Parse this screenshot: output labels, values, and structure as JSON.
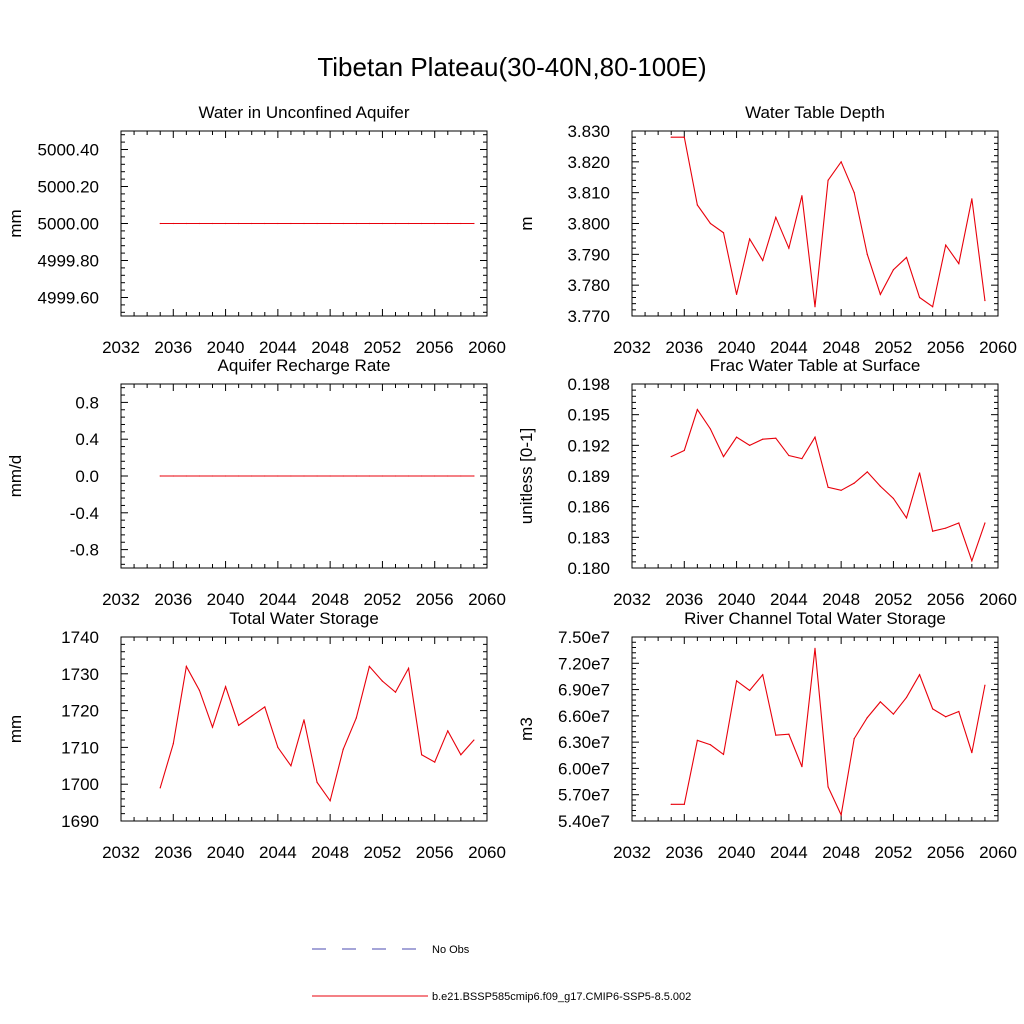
{
  "figure": {
    "title": "Tibetan Plateau(30-40N,80-100E)"
  },
  "legend": {
    "items": [
      {
        "label": "No Obs",
        "color": "#4b4bb0",
        "style": "dashed"
      },
      {
        "label": "b.e21.BSSP585cmip6.f09_g17.CMIP6-SSP5-8.5.002",
        "color": "#e8000b",
        "style": "solid"
      }
    ]
  },
  "chart_data": [
    {
      "type": "line",
      "title": "Water in Unconfined Aquifer",
      "ylabel": "mm",
      "xlim": [
        2032,
        2060
      ],
      "ylim": [
        4999.5,
        5000.5
      ],
      "xticks": [
        "2032",
        "2036",
        "2040",
        "2044",
        "2048",
        "2052",
        "2056",
        "2060"
      ],
      "yticks": [
        4999.6,
        4999.8,
        5000.0,
        5000.2,
        5000.4
      ],
      "ytick_labels": [
        "4999.60",
        "4999.80",
        "5000.00",
        "5000.20",
        "5000.40"
      ],
      "x": [
        2035,
        2036,
        2037,
        2038,
        2039,
        2040,
        2041,
        2042,
        2043,
        2044,
        2045,
        2046,
        2047,
        2048,
        2049,
        2050,
        2051,
        2052,
        2053,
        2054,
        2055,
        2056,
        2057,
        2058,
        2059
      ],
      "series": [
        {
          "values": [
            5000,
            5000,
            5000,
            5000,
            5000,
            5000,
            5000,
            5000,
            5000,
            5000,
            5000,
            5000,
            5000,
            5000,
            5000,
            5000,
            5000,
            5000,
            5000,
            5000,
            5000,
            5000,
            5000,
            5000,
            5000
          ],
          "color": "#e8000b"
        }
      ]
    },
    {
      "type": "line",
      "title": "Water Table Depth",
      "ylabel": "m",
      "xlim": [
        2032,
        2060
      ],
      "ylim": [
        3.77,
        3.83
      ],
      "xticks": [
        "2032",
        "2036",
        "2040",
        "2044",
        "2048",
        "2052",
        "2056",
        "2060"
      ],
      "yticks": [
        3.77,
        3.78,
        3.79,
        3.8,
        3.81,
        3.82,
        3.83
      ],
      "ytick_labels": [
        "3.770",
        "3.780",
        "3.790",
        "3.800",
        "3.810",
        "3.820",
        "3.830"
      ],
      "x": [
        2035,
        2036,
        2037,
        2038,
        2039,
        2040,
        2041,
        2042,
        2043,
        2044,
        2045,
        2046,
        2047,
        2048,
        2049,
        2050,
        2051,
        2052,
        2053,
        2054,
        2055,
        2056,
        2057,
        2058,
        2059
      ],
      "series": [
        {
          "values": [
            3.828,
            3.828,
            3.806,
            3.8,
            3.797,
            3.777,
            3.795,
            3.788,
            3.802,
            3.792,
            3.809,
            3.773,
            3.814,
            3.82,
            3.81,
            3.79,
            3.777,
            3.785,
            3.789,
            3.776,
            3.773,
            3.793,
            3.787,
            3.808,
            3.775
          ],
          "color": "#e8000b"
        }
      ]
    },
    {
      "type": "line",
      "title": "Aquifer Recharge Rate",
      "ylabel": "mm/d",
      "xlim": [
        2032,
        2060
      ],
      "ylim": [
        -1.0,
        1.0
      ],
      "xticks": [
        "2032",
        "2036",
        "2040",
        "2044",
        "2048",
        "2052",
        "2056",
        "2060"
      ],
      "yticks": [
        -0.8,
        -0.4,
        0.0,
        0.4,
        0.8
      ],
      "ytick_labels": [
        "-0.8",
        "-0.4",
        "0.0",
        "0.4",
        "0.8"
      ],
      "x": [
        2035,
        2036,
        2037,
        2038,
        2039,
        2040,
        2041,
        2042,
        2043,
        2044,
        2045,
        2046,
        2047,
        2048,
        2049,
        2050,
        2051,
        2052,
        2053,
        2054,
        2055,
        2056,
        2057,
        2058,
        2059
      ],
      "series": [
        {
          "values": [
            0,
            0,
            0,
            0,
            0,
            0,
            0,
            0,
            0,
            0,
            0,
            0,
            0,
            0,
            0,
            0,
            0,
            0,
            0,
            0,
            0,
            0,
            0,
            0,
            0
          ],
          "color": "#e8000b"
        }
      ]
    },
    {
      "type": "line",
      "title": "Frac Water Table at Surface",
      "ylabel": "unitless [0-1]",
      "xlim": [
        2032,
        2060
      ],
      "ylim": [
        0.18,
        0.198
      ],
      "xticks": [
        "2032",
        "2036",
        "2040",
        "2044",
        "2048",
        "2052",
        "2056",
        "2060"
      ],
      "yticks": [
        0.18,
        0.183,
        0.186,
        0.189,
        0.192,
        0.195,
        0.198
      ],
      "ytick_labels": [
        "0.180",
        "0.183",
        "0.186",
        "0.189",
        "0.192",
        "0.195",
        "0.198"
      ],
      "x": [
        2035,
        2036,
        2037,
        2038,
        2039,
        2040,
        2041,
        2042,
        2043,
        2044,
        2045,
        2046,
        2047,
        2048,
        2049,
        2050,
        2051,
        2052,
        2053,
        2054,
        2055,
        2056,
        2057,
        2058,
        2059
      ],
      "series": [
        {
          "values": [
            0.1909,
            0.1915,
            0.1955,
            0.1936,
            0.1909,
            0.1928,
            0.192,
            0.1926,
            0.1927,
            0.191,
            0.1907,
            0.1928,
            0.1879,
            0.1876,
            0.1883,
            0.1894,
            0.188,
            0.1868,
            0.1849,
            0.1893,
            0.1836,
            0.1839,
            0.1844,
            0.1807,
            0.1844
          ],
          "color": "#e8000b"
        }
      ]
    },
    {
      "type": "line",
      "title": "Total Water Storage",
      "ylabel": "mm",
      "xlim": [
        2032,
        2060
      ],
      "ylim": [
        1690,
        1740
      ],
      "xticks": [
        "2032",
        "2036",
        "2040",
        "2044",
        "2048",
        "2052",
        "2056",
        "2060"
      ],
      "yticks": [
        1690,
        1700,
        1710,
        1720,
        1730,
        1740
      ],
      "ytick_labels": [
        "1690",
        "1700",
        "1710",
        "1720",
        "1730",
        "1740"
      ],
      "x": [
        2035,
        2036,
        2037,
        2038,
        2039,
        2040,
        2041,
        2042,
        2043,
        2044,
        2045,
        2046,
        2047,
        2048,
        2049,
        2050,
        2051,
        2052,
        2053,
        2054,
        2055,
        2056,
        2057,
        2058,
        2059
      ],
      "series": [
        {
          "values": [
            1699,
            1711,
            1732,
            1725.5,
            1715.5,
            1726.5,
            1716,
            1718.5,
            1721,
            1710,
            1705,
            1717.5,
            1700.5,
            1695.5,
            1709.5,
            1718,
            1732,
            1728,
            1725,
            1731.5,
            1708,
            1706,
            1714.5,
            1708,
            1712
          ],
          "color": "#e8000b"
        }
      ]
    },
    {
      "type": "line",
      "title": "River Channel Total Water Storage",
      "ylabel": "m3",
      "xlim": [
        2032,
        2060
      ],
      "ylim": [
        54000000,
        75000000
      ],
      "xticks": [
        "2032",
        "2036",
        "2040",
        "2044",
        "2048",
        "2052",
        "2056",
        "2060"
      ],
      "yticks": [
        54000000,
        57000000,
        60000000,
        63000000,
        66000000,
        69000000,
        72000000,
        75000000
      ],
      "ytick_labels": [
        "5.40e7",
        "5.70e7",
        "6.00e7",
        "6.30e7",
        "6.60e7",
        "6.90e7",
        "7.20e7",
        "7.50e7"
      ],
      "x": [
        2035,
        2036,
        2037,
        2038,
        2039,
        2040,
        2041,
        2042,
        2043,
        2044,
        2045,
        2046,
        2047,
        2048,
        2049,
        2050,
        2051,
        2052,
        2053,
        2054,
        2055,
        2056,
        2057,
        2058,
        2059
      ],
      "series": [
        {
          "values": [
            55900000,
            55900000,
            63200000,
            62700000,
            61600000,
            70000000,
            68900000,
            70700000,
            63800000,
            63900000,
            60200000,
            73700000,
            57900000,
            54700000,
            63400000,
            65800000,
            67600000,
            66200000,
            68100000,
            70700000,
            66800000,
            65900000,
            66500000,
            61800000,
            69500000
          ],
          "color": "#e8000b"
        }
      ]
    }
  ]
}
